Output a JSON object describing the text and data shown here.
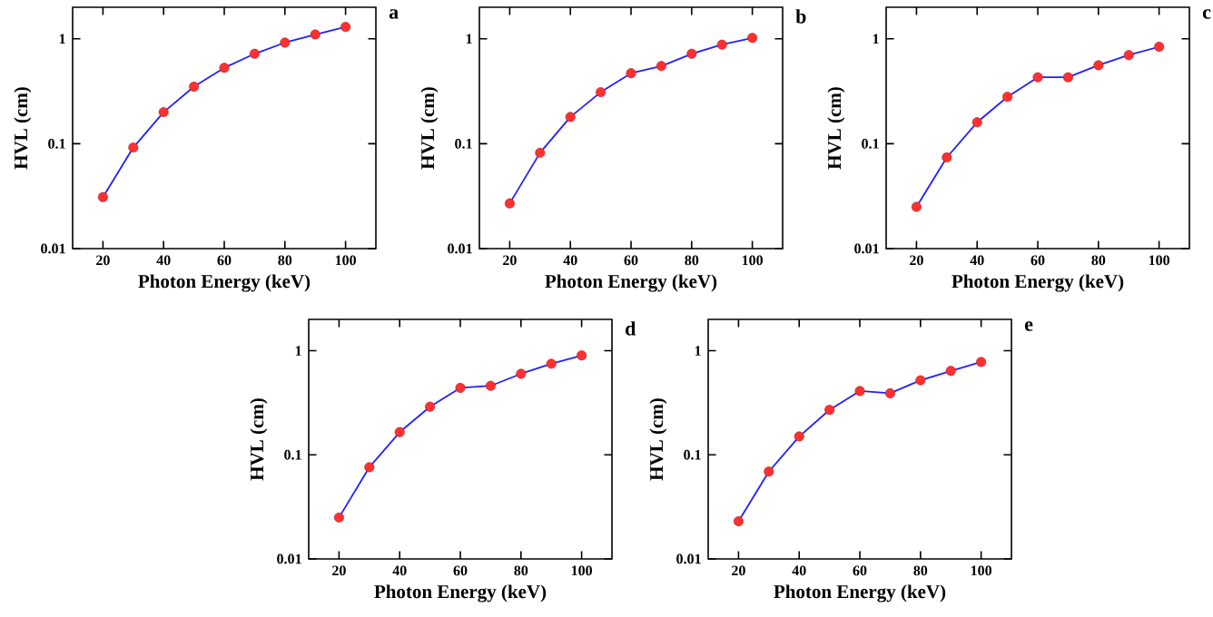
{
  "chart_data": [
    {
      "type": "line",
      "x": [
        20,
        30,
        40,
        50,
        60,
        70,
        80,
        90,
        100
      ],
      "xlabel": "Photon Energy (keV)",
      "ylabel": "HVL (cm)",
      "log": "y",
      "xlim": [
        10,
        110
      ],
      "ylim": [
        0.01,
        2
      ],
      "xticks": [
        20,
        40,
        60,
        80,
        100
      ],
      "yticks": [
        0.01,
        0.1,
        1
      ],
      "annotations": [
        "a"
      ],
      "series": [
        {
          "color": "#2020ff",
          "marker": "none",
          "values": [
            0.031,
            0.092,
            0.2,
            0.35,
            0.53,
            0.72,
            0.92,
            1.1,
            1.3
          ]
        },
        {
          "type": "scatter",
          "color": "#ff3030",
          "marker": "circle",
          "values": [
            0.031,
            0.092,
            0.2,
            0.35,
            0.53,
            0.72,
            0.92,
            1.1,
            1.3
          ]
        }
      ]
    },
    {
      "type": "line",
      "x": [
        20,
        30,
        40,
        50,
        60,
        70,
        80,
        90,
        100
      ],
      "xlabel": "Photon Energy (keV)",
      "ylabel": "HVL (cm)",
      "log": "y",
      "xlim": [
        10,
        110
      ],
      "ylim": [
        0.01,
        2
      ],
      "xticks": [
        20,
        40,
        60,
        80,
        100
      ],
      "yticks": [
        0.01,
        0.1,
        1
      ],
      "annotations": [
        "b"
      ],
      "series": [
        {
          "color": "#2020ff",
          "marker": "none",
          "values": [
            0.027,
            0.082,
            0.18,
            0.31,
            0.47,
            0.55,
            0.72,
            0.88,
            1.02
          ]
        },
        {
          "type": "scatter",
          "color": "#ff3030",
          "marker": "circle",
          "values": [
            0.027,
            0.082,
            0.18,
            0.31,
            0.47,
            0.55,
            0.72,
            0.88,
            1.02
          ]
        }
      ]
    },
    {
      "type": "line",
      "x": [
        20,
        30,
        40,
        50,
        60,
        70,
        80,
        90,
        100
      ],
      "xlabel": "Photon Energy (keV)",
      "ylabel": "HVL (cm)",
      "log": "y",
      "xlim": [
        10,
        110
      ],
      "ylim": [
        0.01,
        2
      ],
      "xticks": [
        20,
        40,
        60,
        80,
        100
      ],
      "yticks": [
        0.01,
        0.1,
        1
      ],
      "annotations": [
        "c"
      ],
      "series": [
        {
          "color": "#2020ff",
          "marker": "none",
          "values": [
            0.025,
            0.074,
            0.16,
            0.28,
            0.43,
            0.43,
            0.56,
            0.7,
            0.84
          ]
        },
        {
          "type": "scatter",
          "color": "#ff3030",
          "marker": "circle",
          "values": [
            0.025,
            0.074,
            0.16,
            0.28,
            0.43,
            0.43,
            0.56,
            0.7,
            0.84
          ]
        }
      ]
    },
    {
      "type": "line",
      "x": [
        20,
        30,
        40,
        50,
        60,
        70,
        80,
        90,
        100
      ],
      "xlabel": "Photon Energy (keV)",
      "ylabel": "HVL (cm)",
      "log": "y",
      "xlim": [
        10,
        110
      ],
      "ylim": [
        0.01,
        2
      ],
      "xticks": [
        20,
        40,
        60,
        80,
        100
      ],
      "yticks": [
        0.01,
        0.1,
        1
      ],
      "annotations": [
        "d"
      ],
      "series": [
        {
          "color": "#2020ff",
          "marker": "none",
          "values": [
            0.025,
            0.076,
            0.165,
            0.29,
            0.44,
            0.46,
            0.6,
            0.75,
            0.9
          ]
        },
        {
          "type": "scatter",
          "color": "#ff3030",
          "marker": "circle",
          "values": [
            0.025,
            0.076,
            0.165,
            0.29,
            0.44,
            0.46,
            0.6,
            0.75,
            0.9
          ]
        }
      ]
    },
    {
      "type": "line",
      "x": [
        20,
        30,
        40,
        50,
        60,
        70,
        80,
        90,
        100
      ],
      "xlabel": "Photon Energy (keV)",
      "ylabel": "HVL (cm)",
      "log": "y",
      "xlim": [
        10,
        110
      ],
      "ylim": [
        0.01,
        2
      ],
      "xticks": [
        20,
        40,
        60,
        80,
        100
      ],
      "yticks": [
        0.01,
        0.1,
        1
      ],
      "annotations": [
        "e"
      ],
      "series": [
        {
          "color": "#2020ff",
          "marker": "none",
          "values": [
            0.023,
            0.069,
            0.15,
            0.27,
            0.41,
            0.39,
            0.52,
            0.64,
            0.78
          ]
        },
        {
          "type": "scatter",
          "color": "#ff3030",
          "marker": "circle",
          "values": [
            0.023,
            0.069,
            0.15,
            0.27,
            0.41,
            0.39,
            0.52,
            0.64,
            0.78
          ]
        }
      ]
    }
  ]
}
